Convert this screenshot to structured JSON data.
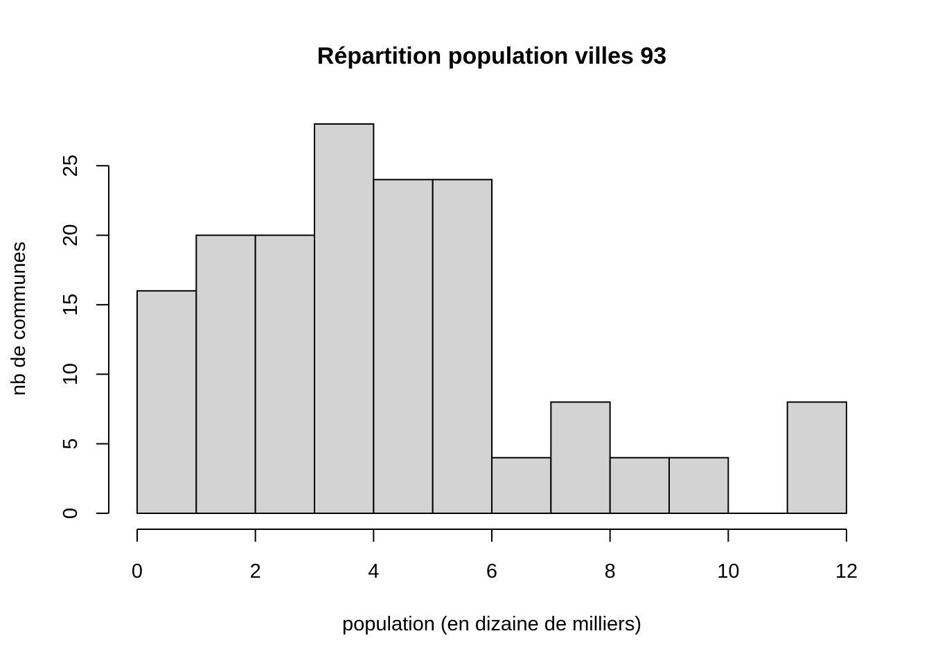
{
  "chart_data": {
    "type": "bar",
    "subtype": "histogram",
    "title": "Répartition population villes 93",
    "xlabel": "population (en dizaine de milliers)",
    "ylabel": "nb de communes",
    "bin_edges": [
      0,
      1,
      2,
      3,
      4,
      5,
      6,
      7,
      8,
      9,
      10,
      11,
      12
    ],
    "values": [
      16,
      20,
      20,
      28,
      24,
      24,
      4,
      8,
      4,
      4,
      0,
      8
    ],
    "xlim": [
      0,
      12
    ],
    "ylim": [
      0,
      28
    ],
    "x_ticks": [
      0,
      2,
      4,
      6,
      8,
      10,
      12
    ],
    "y_ticks": [
      0,
      5,
      10,
      15,
      20,
      25
    ],
    "grid": false,
    "legend": "none",
    "bar_color": "#d3d3d3",
    "edge_color": "#000000"
  }
}
